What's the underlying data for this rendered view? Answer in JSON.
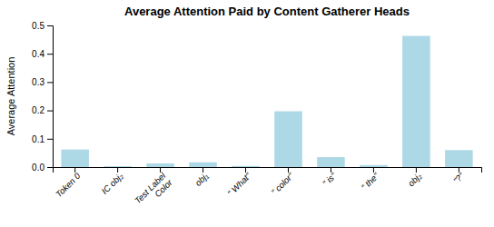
{
  "chart_data": {
    "type": "bar",
    "title": "Average Attention Paid by Content Gatherer Heads",
    "ylabel": "Average Attention",
    "categories": [
      "Token 0",
      "IC obj₂",
      "Test Label\nColor",
      "obj₁",
      "\" What\"",
      "\" color\"",
      "\" is\"",
      "\" the\"",
      "obj₂",
      "\"?\""
    ],
    "values": [
      0.062,
      0.003,
      0.013,
      0.017,
      0.004,
      0.197,
      0.035,
      0.007,
      0.463,
      0.06
    ],
    "color": "#add8e6",
    "ylim": [
      0,
      0.5
    ],
    "yticks": [
      {
        "value": 0,
        "label": "0.0"
      },
      0.1,
      0.2,
      0.3,
      0.4,
      0.5
    ]
  }
}
